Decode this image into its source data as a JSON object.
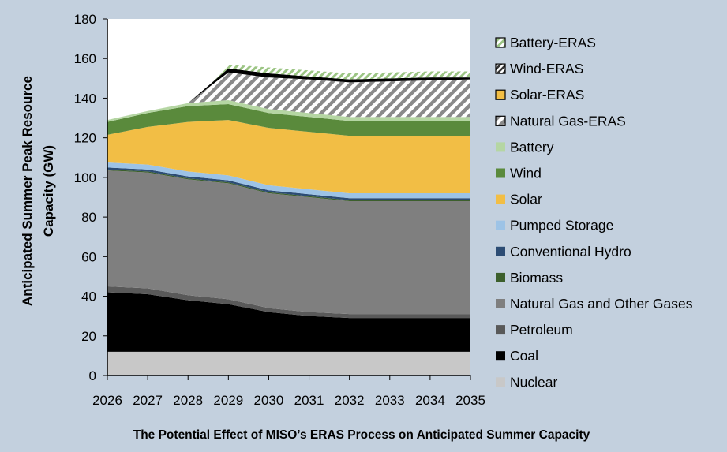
{
  "chart_data": {
    "type": "area",
    "stacked": true,
    "title": "The Potential Effect of MISO’s ERAS Process on Anticipated Summer Capacity",
    "xlabel": "",
    "ylabel_lines": [
      "Anticipated Summer Peak Resource",
      "Capacity (GW)"
    ],
    "ylim": [
      0,
      180
    ],
    "y_ticks": [
      0,
      20,
      40,
      60,
      80,
      100,
      120,
      140,
      160,
      180
    ],
    "x": [
      "2026",
      "2027",
      "2028",
      "2029",
      "2030",
      "2031",
      "2032",
      "2033",
      "2034",
      "2035"
    ],
    "series": [
      {
        "name": "Nuclear",
        "color": "#c8c8c8",
        "pattern": "",
        "values": [
          12,
          12,
          12,
          12,
          12,
          12,
          12,
          12,
          12,
          12
        ]
      },
      {
        "name": "Coal",
        "color": "#000000",
        "pattern": "",
        "values": [
          30,
          29,
          26,
          24,
          20,
          18,
          17,
          17,
          17,
          17
        ]
      },
      {
        "name": "Petroleum",
        "color": "#595959",
        "pattern": "",
        "values": [
          3,
          3,
          2.5,
          2.5,
          2,
          2,
          2,
          2,
          2,
          2
        ]
      },
      {
        "name": "Natural Gas and Other Gases",
        "color": "#7f7f7f",
        "pattern": "",
        "values": [
          58.5,
          58.5,
          58.5,
          58.5,
          58,
          58,
          57,
          57,
          57,
          57
        ]
      },
      {
        "name": "Biomass",
        "color": "#3c5f2c",
        "pattern": "",
        "values": [
          0.5,
          0.5,
          0.5,
          0.5,
          0.5,
          0.5,
          0.5,
          0.5,
          0.5,
          0.5
        ]
      },
      {
        "name": "Conventional Hydro",
        "color": "#2c4c74",
        "pattern": "",
        "values": [
          1,
          1,
          1,
          1,
          1,
          1,
          1,
          1,
          1,
          1
        ]
      },
      {
        "name": "Pumped Storage",
        "color": "#9dc3e6",
        "pattern": "",
        "values": [
          2.5,
          2.5,
          2.5,
          2.5,
          2.5,
          2.5,
          2.5,
          2.5,
          2.5,
          2.5
        ]
      },
      {
        "name": "Solar",
        "color": "#f2be45",
        "pattern": "",
        "values": [
          14,
          19,
          25,
          28,
          29,
          29,
          29,
          29,
          29,
          29
        ]
      },
      {
        "name": "Wind",
        "color": "#5a8a3c",
        "pattern": "",
        "values": [
          6.5,
          7,
          8,
          8,
          7.5,
          7.5,
          7.5,
          7.5,
          7.5,
          7.5
        ]
      },
      {
        "name": "Battery",
        "color": "#b5d6a3",
        "pattern": "",
        "values": [
          1,
          1,
          1.5,
          2,
          2,
          2,
          2,
          2,
          2,
          2
        ]
      },
      {
        "name": "Natural Gas-ERAS",
        "color": "#ffffff",
        "pattern": "hatch-gray",
        "values": [
          0,
          0,
          0,
          14,
          16,
          17,
          17.5,
          18,
          18.5,
          19
        ]
      },
      {
        "name": "Solar-ERAS",
        "color": "#f2be45",
        "pattern": "",
        "values": [
          0,
          0,
          0,
          0,
          0,
          0,
          0,
          0,
          0,
          0
        ]
      },
      {
        "name": "Wind-ERAS",
        "color": "#000000",
        "pattern": "",
        "values": [
          0,
          0,
          0,
          2,
          2,
          1.5,
          1.5,
          1.5,
          1.5,
          1
        ]
      },
      {
        "name": "Battery-ERAS",
        "color": "#c5e0b4",
        "pattern": "hatch-green",
        "values": [
          0,
          0,
          0,
          2,
          3,
          3,
          3,
          3,
          3,
          3
        ]
      }
    ],
    "legend_order": [
      "Battery-ERAS",
      "Wind-ERAS",
      "Solar-ERAS",
      "Natural Gas-ERAS",
      "Battery",
      "Wind",
      "Solar",
      "Pumped Storage",
      "Conventional Hydro",
      "Biomass",
      "Natural Gas and Other Gases",
      "Petroleum",
      "Coal",
      "Nuclear"
    ],
    "legend_position": "right"
  }
}
